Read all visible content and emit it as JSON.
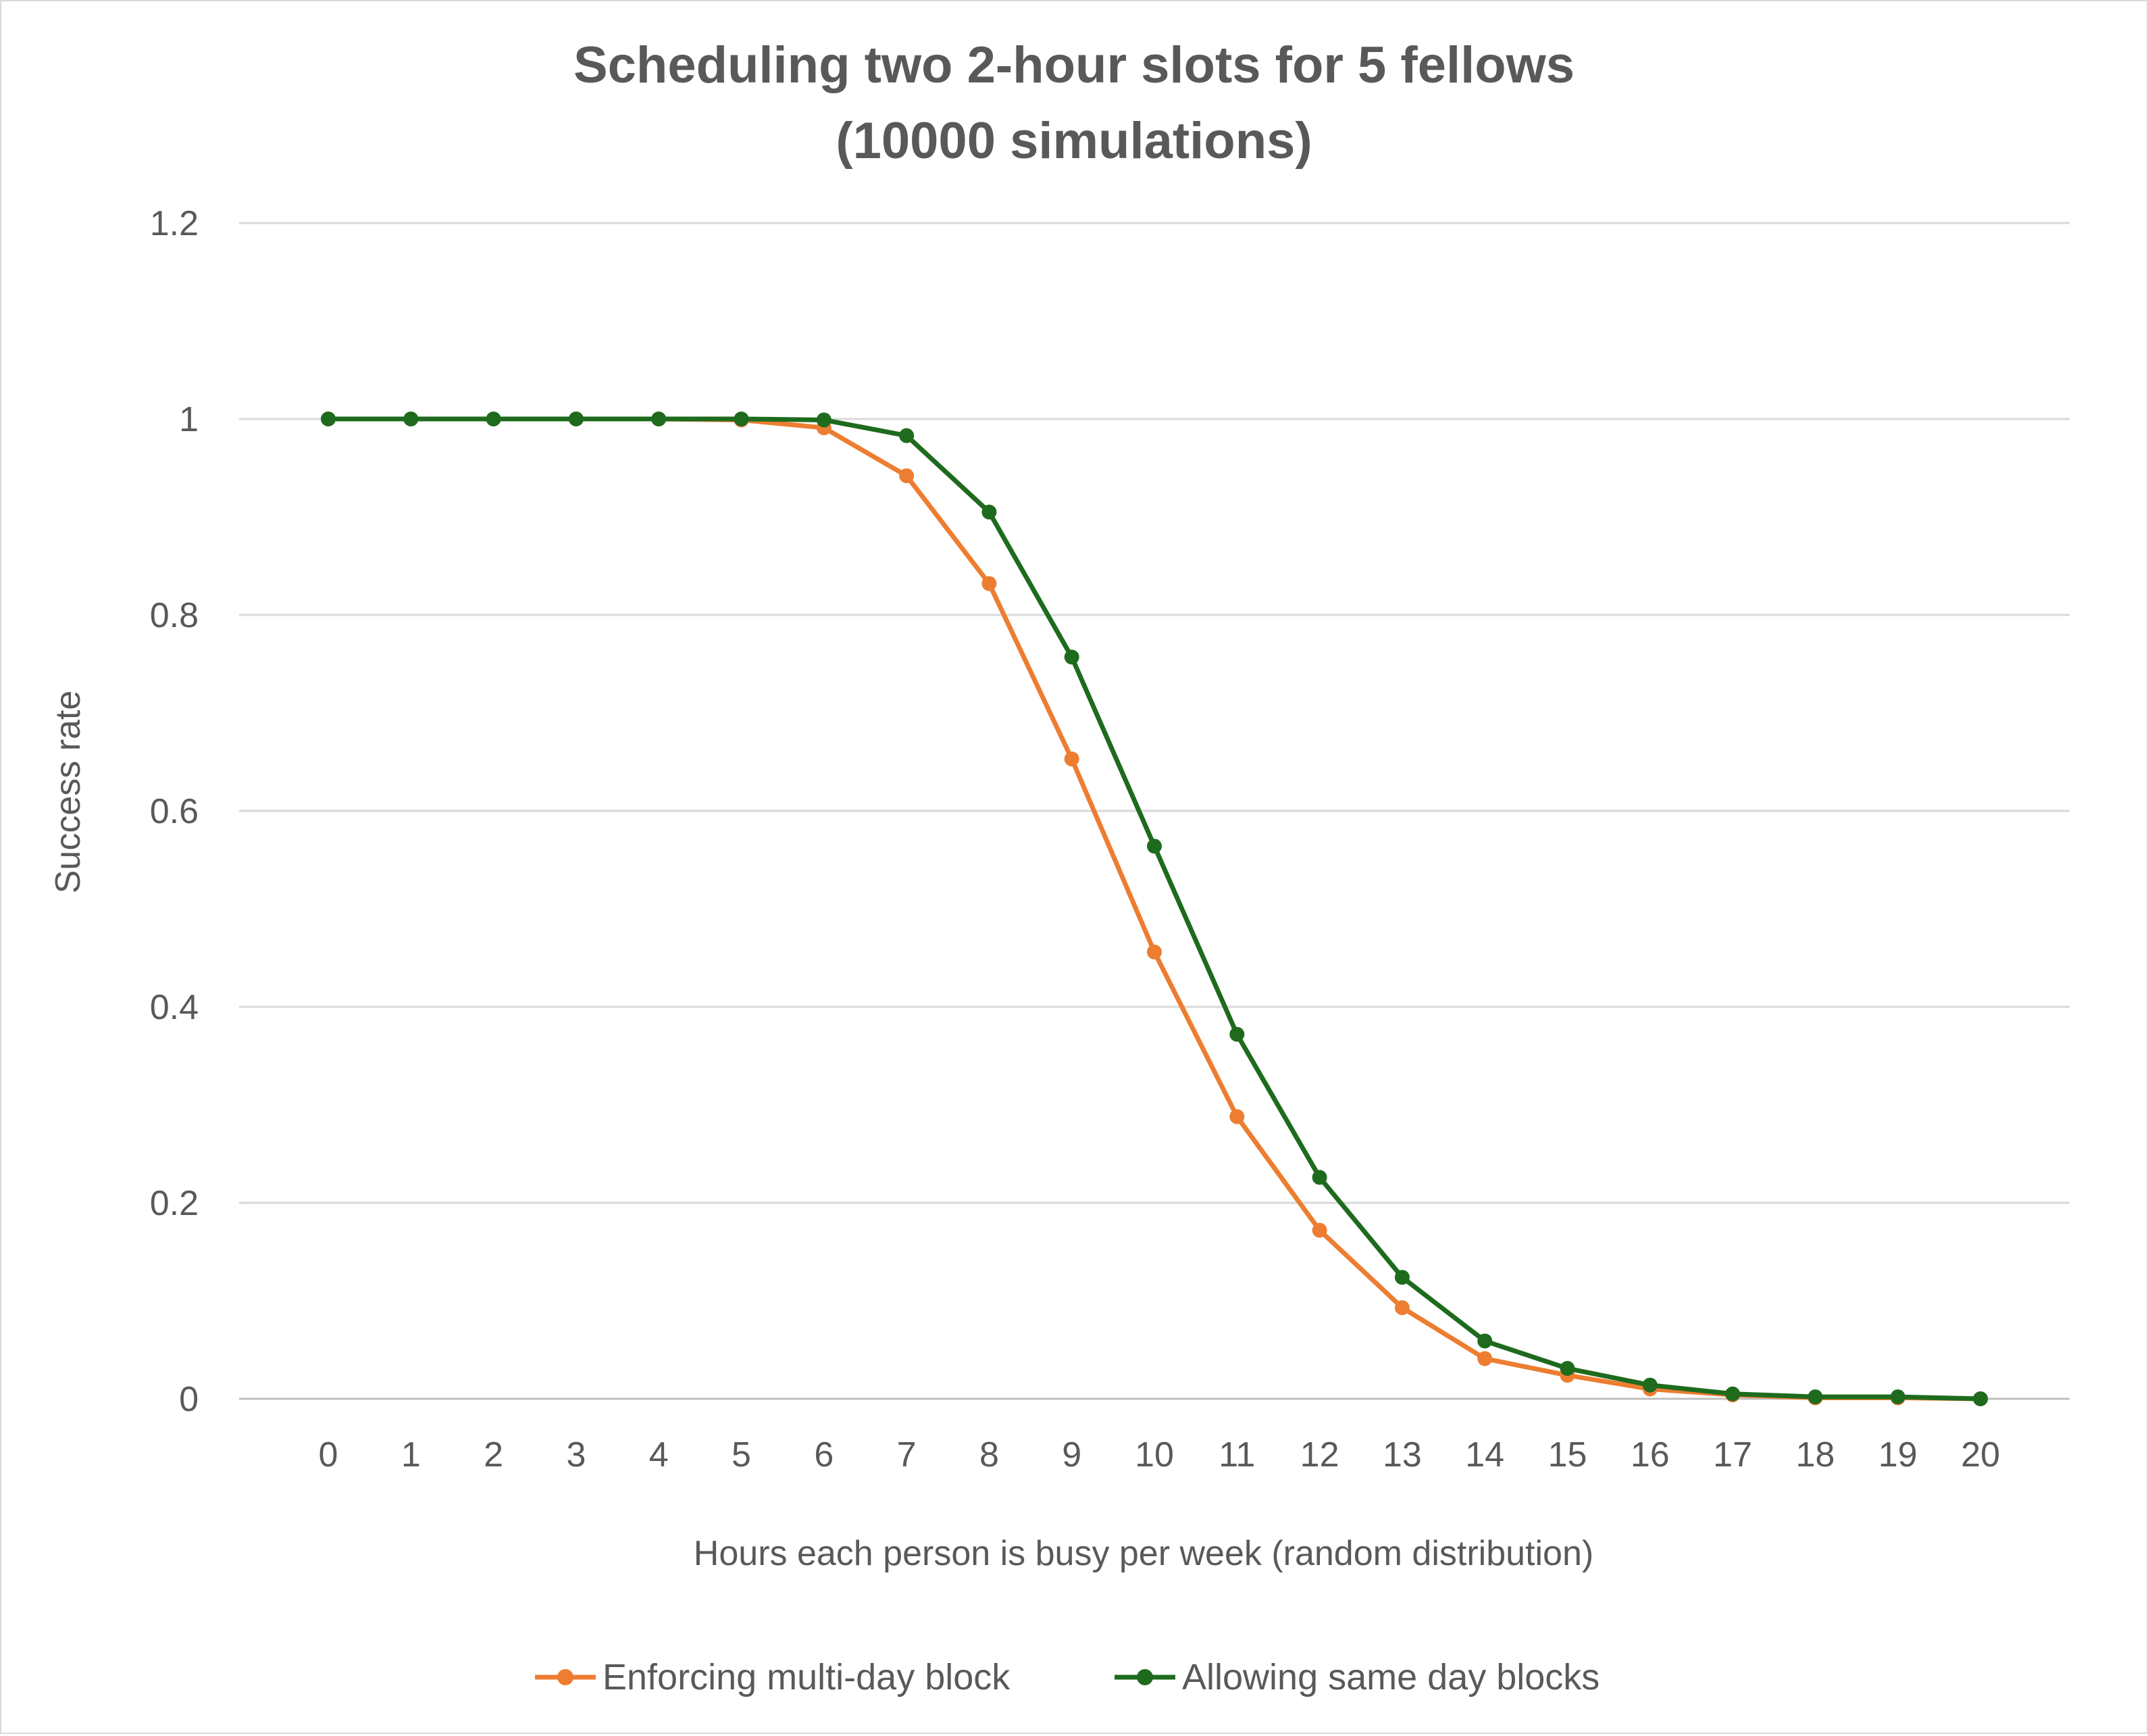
{
  "chart_data": {
    "type": "line",
    "title_lines": [
      "Scheduling two 2-hour slots for 5 fellows",
      "(10000 simulations)"
    ],
    "xlabel": "Hours each person is busy per week (random distribution)",
    "ylabel": "Success rate",
    "x": [
      0,
      1,
      2,
      3,
      4,
      5,
      6,
      7,
      8,
      9,
      10,
      11,
      12,
      13,
      14,
      15,
      16,
      17,
      18,
      19,
      20
    ],
    "x_tick_labels": [
      "0",
      "1",
      "2",
      "3",
      "4",
      "5",
      "6",
      "7",
      "8",
      "9",
      "10",
      "11",
      "12",
      "13",
      "14",
      "15",
      "16",
      "17",
      "18",
      "19",
      "20"
    ],
    "ylim": [
      0,
      1.2
    ],
    "y_ticks": [
      0,
      0.2,
      0.4,
      0.6,
      0.8,
      1,
      1.2
    ],
    "y_tick_labels": [
      "0",
      "0.2",
      "0.4",
      "0.6",
      "0.8",
      "1",
      "1.2"
    ],
    "grid": true,
    "legend_position": "bottom",
    "series": [
      {
        "name": "Enforcing multi-day block",
        "color": "#ED7D31",
        "values": [
          1,
          1,
          1,
          1,
          1,
          0.999,
          0.991,
          0.942,
          0.832,
          0.653,
          0.456,
          0.288,
          0.172,
          0.093,
          0.041,
          0.024,
          0.01,
          0.004,
          0.001,
          0.001,
          0
        ]
      },
      {
        "name": "Allowing same day blocks",
        "color": "#1E6B1E",
        "values": [
          1,
          1,
          1,
          1,
          1,
          1,
          0.999,
          0.983,
          0.905,
          0.757,
          0.564,
          0.372,
          0.226,
          0.124,
          0.059,
          0.031,
          0.014,
          0.005,
          0.002,
          0.002,
          0
        ]
      }
    ]
  }
}
